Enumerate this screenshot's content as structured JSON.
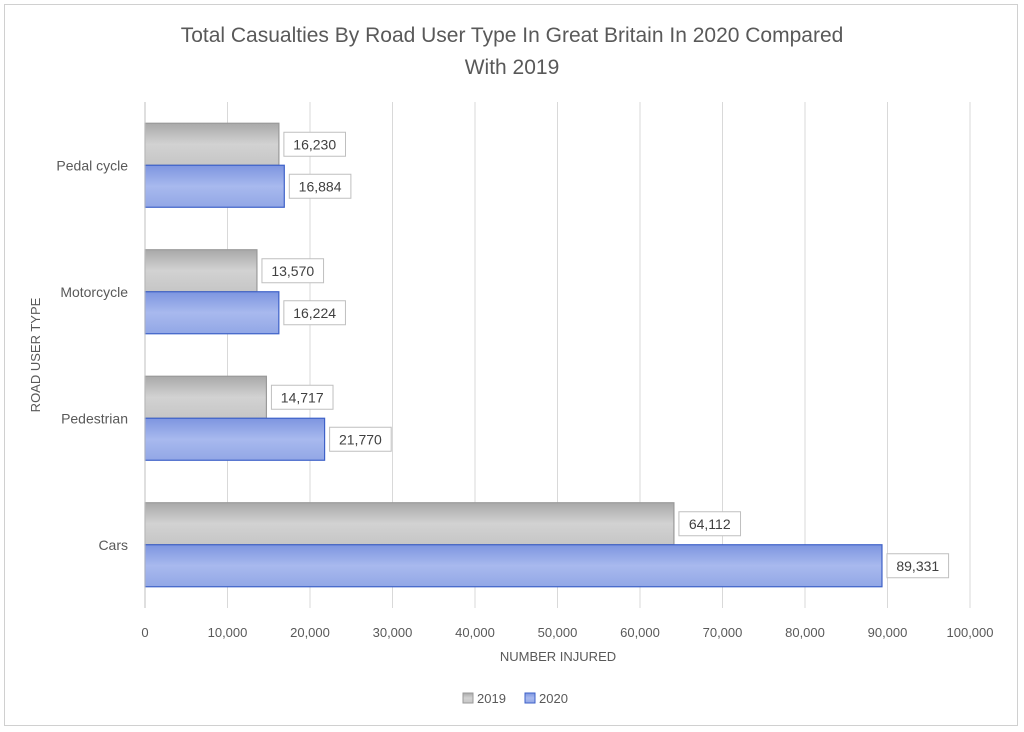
{
  "chart_data": {
    "type": "bar",
    "orientation": "horizontal",
    "title": "Total Casualties By Road User Type In Great Britain In 2020 Compared With 2019",
    "title_lines": [
      "Total Casualties By Road User Type In Great Britain In 2020 Compared",
      "With 2019"
    ],
    "xlabel": "NUMBER INJURED",
    "ylabel": "ROAD USER TYPE",
    "categories": [
      "Pedal cycle",
      "Motorcycle",
      "Pedestrian",
      "Cars"
    ],
    "series": [
      {
        "name": "2019",
        "values": [
          16230,
          13570,
          14717,
          64112
        ],
        "labels": [
          "16,230",
          "13,570",
          "14,717",
          "64,112"
        ],
        "color": "#c4c4c4"
      },
      {
        "name": "2020",
        "values": [
          16884,
          16224,
          21770,
          89331
        ],
        "labels": [
          "16,884",
          "16,224",
          "21,770",
          "89,331"
        ],
        "color": "#8ea4e6"
      }
    ],
    "xlim": [
      0,
      100000
    ],
    "xticks": [
      0,
      10000,
      20000,
      30000,
      40000,
      50000,
      60000,
      70000,
      80000,
      90000,
      100000
    ],
    "xtick_labels": [
      "0",
      "10,000",
      "20,000",
      "30,000",
      "40,000",
      "50,000",
      "60,000",
      "70,000",
      "80,000",
      "90,000",
      "100,000"
    ],
    "grid": "vertical",
    "legend_position": "bottom"
  }
}
